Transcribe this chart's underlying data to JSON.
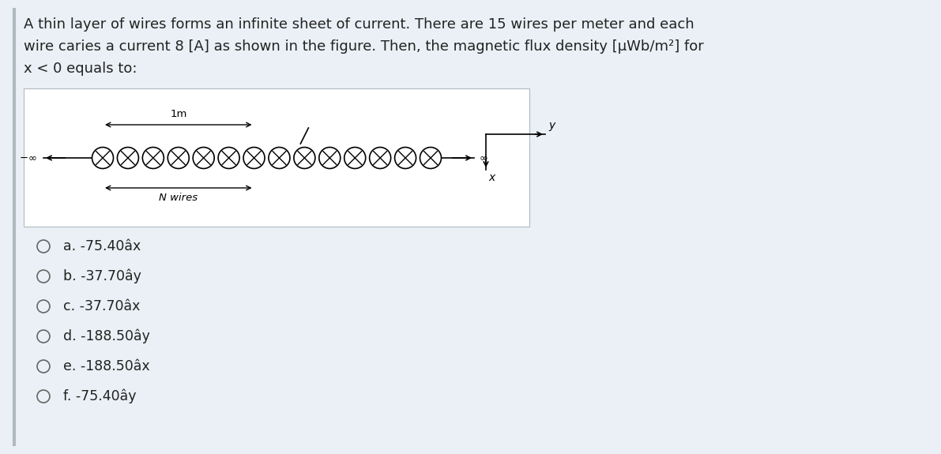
{
  "background_color": "#eaf0f5",
  "white_bg": "#ffffff",
  "question_text_line1": "A thin layer of wires forms an infinite sheet of current. There are 15 wires per meter and each",
  "question_text_line2": "wire caries a current 8 [A] as shown in the figure. Then, the magnetic flux density [μWb/m²] for",
  "question_text_line3": "x < 0 equals to:",
  "options": [
    "a. -75.40âx",
    "b. -37.70ây",
    "c. -37.70âx",
    "d. -188.50ây",
    "e. -188.50âx",
    "f. -75.40ây"
  ],
  "n_circles": 14,
  "font_size_question": 13.0,
  "font_size_options": 12.5,
  "text_color": "#222222"
}
